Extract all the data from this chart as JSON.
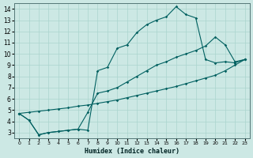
{
  "title": "",
  "xlabel": "Humidex (Indice chaleur)",
  "ylabel": "",
  "bg_color": "#cce8e4",
  "grid_color": "#aad4ce",
  "line_color": "#006060",
  "xlim": [
    -0.5,
    23.5
  ],
  "ylim": [
    2.5,
    14.5
  ],
  "xticks": [
    0,
    1,
    2,
    3,
    4,
    5,
    6,
    7,
    8,
    9,
    10,
    11,
    12,
    13,
    14,
    15,
    16,
    17,
    18,
    19,
    20,
    21,
    22,
    23
  ],
  "yticks": [
    3,
    4,
    5,
    6,
    7,
    8,
    9,
    10,
    11,
    12,
    13,
    14
  ],
  "lineA_x": [
    0,
    1,
    2,
    3,
    4,
    5,
    6,
    7,
    8,
    9,
    10,
    11,
    12,
    13,
    14,
    15,
    16,
    17,
    18,
    19,
    20,
    21,
    22,
    23
  ],
  "lineA_y": [
    4.7,
    4.8,
    4.9,
    5.0,
    5.1,
    5.2,
    5.35,
    5.45,
    5.6,
    5.75,
    5.9,
    6.1,
    6.3,
    6.5,
    6.7,
    6.9,
    7.1,
    7.35,
    7.6,
    7.85,
    8.1,
    8.5,
    9.0,
    9.5
  ],
  "lineB_x": [
    0,
    1,
    2,
    3,
    4,
    5,
    6,
    7,
    8,
    9,
    10,
    11,
    12,
    13,
    14,
    15,
    16,
    17,
    18,
    19,
    20,
    21,
    22,
    23
  ],
  "lineB_y": [
    4.7,
    4.1,
    2.8,
    3.0,
    3.1,
    3.2,
    3.3,
    3.2,
    8.5,
    8.8,
    10.5,
    10.8,
    11.9,
    12.6,
    13.0,
    13.3,
    14.2,
    13.5,
    13.2,
    9.5,
    9.2,
    9.3,
    9.2,
    9.5
  ],
  "lineC_x": [
    0,
    1,
    2,
    3,
    4,
    5,
    6,
    7,
    8,
    9,
    10,
    11,
    12,
    13,
    14,
    15,
    16,
    17,
    18,
    19,
    20,
    21,
    22,
    23
  ],
  "lineC_y": [
    4.7,
    4.1,
    2.8,
    3.0,
    3.1,
    3.2,
    3.3,
    4.8,
    6.5,
    6.7,
    7.0,
    7.5,
    8.0,
    8.5,
    9.0,
    9.3,
    9.7,
    10.0,
    10.3,
    10.7,
    11.5,
    10.8,
    9.3,
    9.5
  ]
}
